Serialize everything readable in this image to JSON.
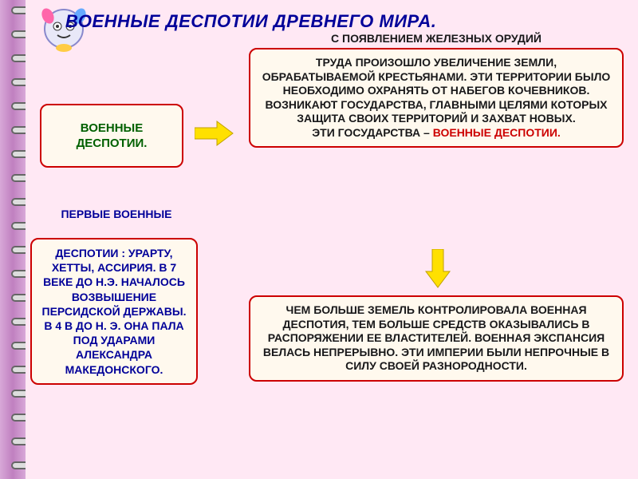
{
  "title": "ВОЕННЫЕ ДЕСПОТИИ ДРЕВНЕГО МИРА.",
  "intro": "С ПОЯВЛЕНИЕМ ЖЕЛЕЗНЫХ ОРУДИЙ",
  "box_a": "ВОЕННЫЕ ДЕСПОТИИ.",
  "box_b_main": "ТРУДА ПРОИЗОШЛО УВЕЛИЧЕНИЕ ЗЕМЛИ, ОБРАБАТЫВАЕМОЙ КРЕСТЬЯНАМИ. ЭТИ ТЕРРИТОРИИ БЫЛО НЕОБХОДИМО ОХРАНЯТЬ ОТ НАБЕГОВ КОЧЕВНИКОВ. ВОЗНИКАЮТ ГОСУДАРСТВА, ГЛАВНЫМИ ЦЕЛЯМИ КОТОРЫХ ЗАЩИТА СВОИХ ТЕРРИТОРИЙ И ЗАХВАТ НОВЫХ.",
  "box_b_line2a": "ЭТИ ГОСУДАРСТВА – ",
  "box_b_line2b": "ВОЕННЫЕ ДЕСПОТИИ.",
  "subhead": "ПЕРВЫЕ ВОЕННЫЕ",
  "box_c": "ДЕСПОТИИ : УРАРТУ, ХЕТТЫ, АССИРИЯ. В 7 ВЕКЕ ДО Н.Э. НАЧАЛОСЬ ВОЗВЫШЕНИЕ ПЕРСИДСКОЙ ДЕРЖАВЫ. В 4 В ДО Н. Э. ОНА ПАЛА ПОД УДАРАМИ АЛЕКСАНДРА МАКЕДОНСКОГО.",
  "box_d": "ЧЕМ БОЛЬШЕ ЗЕМЕЛЬ КОНТРОЛИРОВАЛА ВОЕННАЯ ДЕСПОТИЯ, ТЕМ БОЛЬШЕ СРЕДСТВ ОКАЗЫВАЛИСЬ В РАСПОРЯЖЕНИИ ЕЕ ВЛАСТИТЕЛЕЙ. ВОЕННАЯ ЭКСПАНСИЯ ВЕЛАСЬ НЕПРЕРЫВНО. ЭТИ ИМПЕРИИ БЫЛИ НЕПРОЧНЫЕ В СИЛУ СВОЕЙ РАЗНОРОДНОСТИ.",
  "colors": {
    "page_bg": "#ffe8f4",
    "box_bg": "#fff9ee",
    "box_border": "#cc0000",
    "title_color": "#000099",
    "green_text": "#006000",
    "body_text": "#18181a",
    "arrow_fill": "#ffe000",
    "spiral": "#c080c0"
  }
}
